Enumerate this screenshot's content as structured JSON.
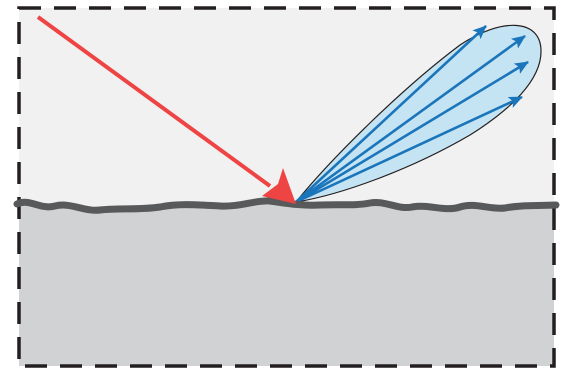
{
  "colors": {
    "background": "#ffffff",
    "air": "#f1f1f1",
    "material": "#d1d2d4",
    "surface": "#58595b",
    "border": "#231f20",
    "incident_ray": "#ef4444",
    "lobe_fill": "#c5e4f3",
    "lobe_outline": "#231f20",
    "reflected_rays": "#1b75bb"
  },
  "elements": {
    "incident_ray": "incident-ray",
    "reflection_lobe": "reflection-lobe",
    "reflected_rays": [
      "reflected-ray-1",
      "reflected-ray-2",
      "reflected-ray-3",
      "reflected-ray-4",
      "reflected-ray-5"
    ],
    "rough_surface": "rough-surface"
  }
}
